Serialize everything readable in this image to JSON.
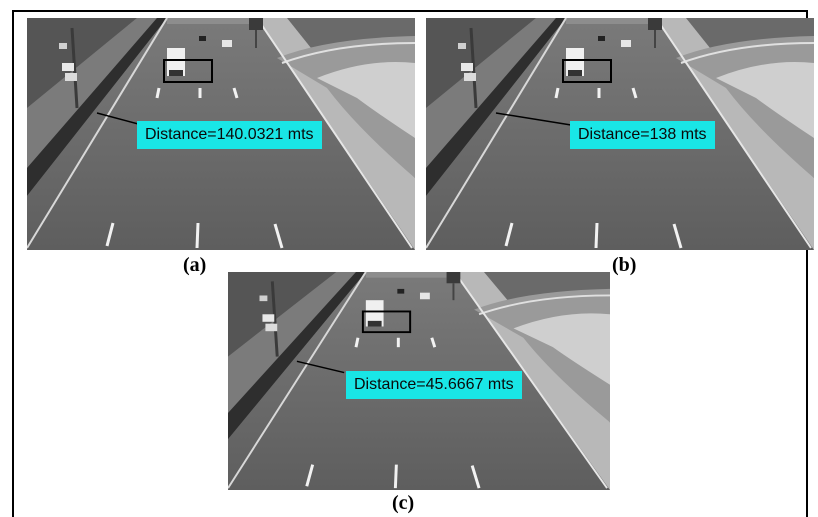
{
  "panels": [
    {
      "caption": "(a)",
      "label": "Distance=140.0321 mts"
    },
    {
      "caption": "(b)",
      "label": "Distance=138 mts"
    },
    {
      "caption": "(c)",
      "label": "Distance=45.6667 mts"
    }
  ],
  "colors": {
    "label_bg": "#19e6e6",
    "frame": "#000000"
  }
}
